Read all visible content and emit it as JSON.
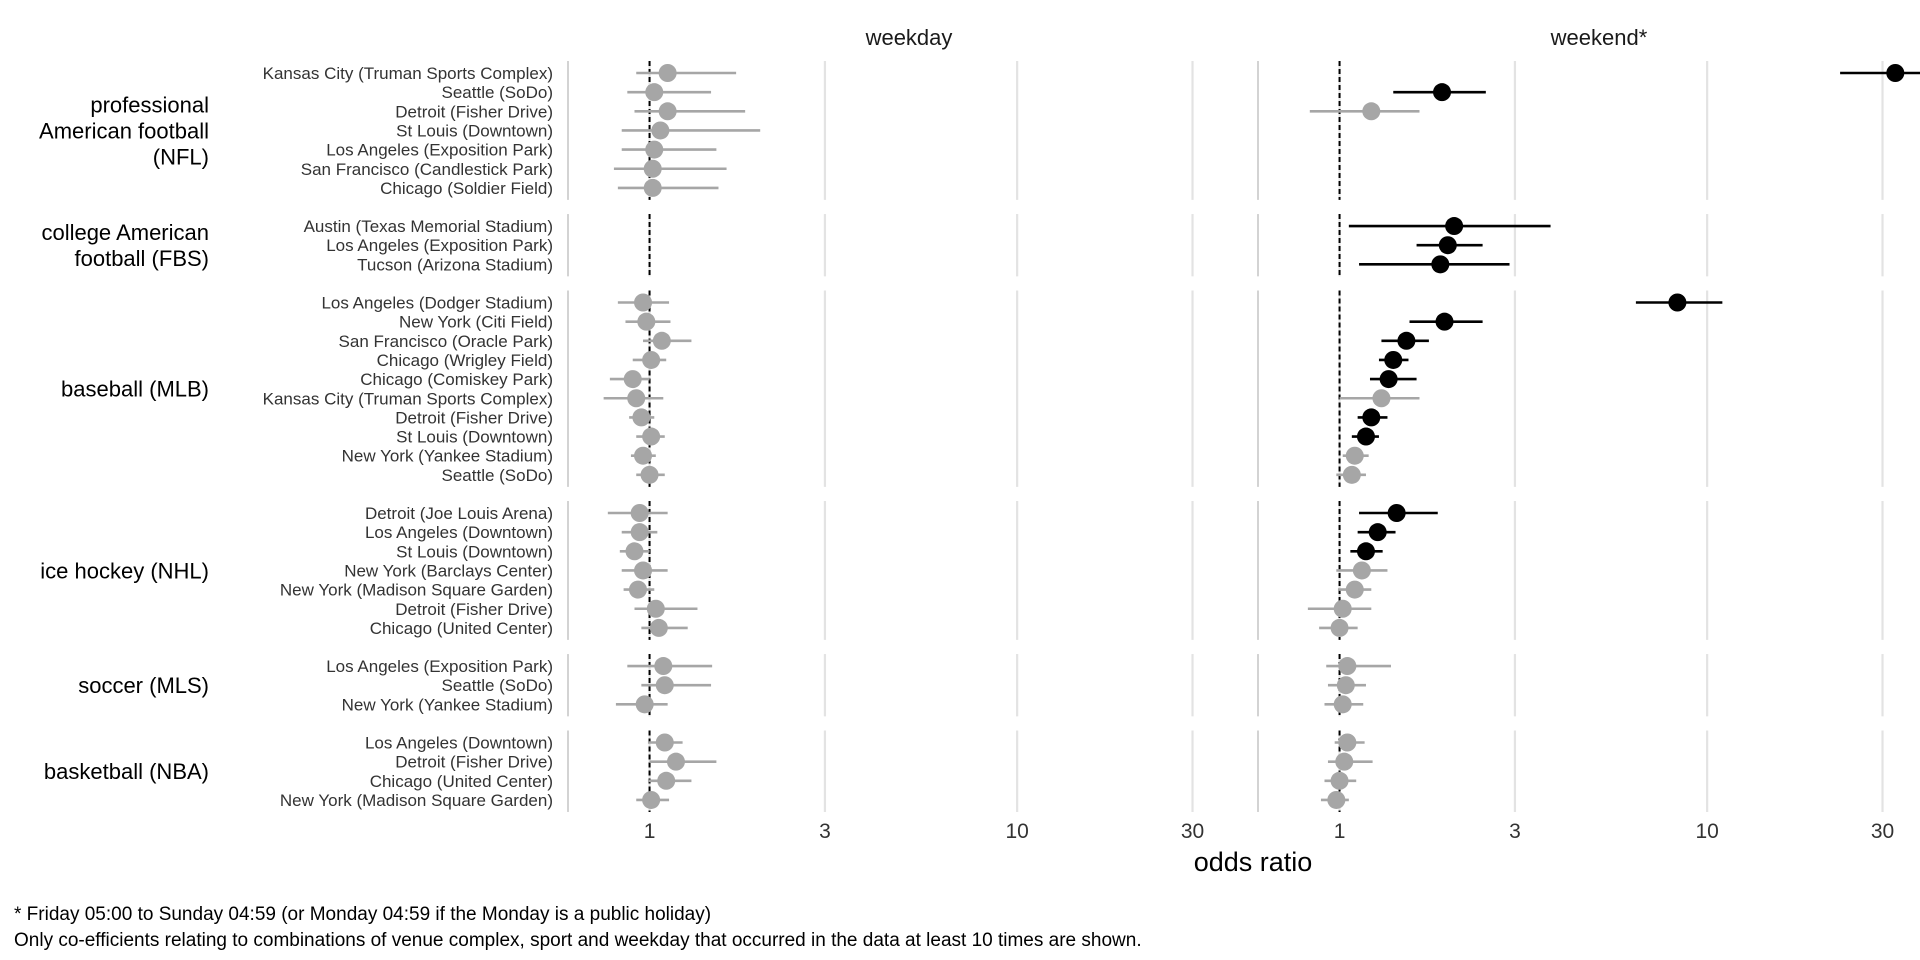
{
  "chart_data": {
    "type": "scatter",
    "subtype": "forest-plot",
    "x_scale": "log",
    "xlabel": "odds ratio",
    "x_ticks": [
      1,
      3,
      10,
      30
    ],
    "x_tick_labels": [
      "1",
      "3",
      "10",
      "30"
    ],
    "xlim": [
      0.6,
      43
    ],
    "reference_line": 1,
    "grid": true,
    "panels": [
      {
        "key": "weekday",
        "title": "weekday"
      },
      {
        "key": "weekend",
        "title": "weekend*"
      }
    ],
    "colors": {
      "significant": "#000000",
      "not_significant": "#a6a6a6",
      "grid": "#e3e3e3"
    },
    "groups": [
      {
        "label_lines": [
          "professional",
          "American football",
          "(NFL)"
        ],
        "rows": [
          {
            "label": "Kansas City (Truman Sports Complex)",
            "weekday": {
              "or": 1.12,
              "lo": 0.92,
              "hi": 1.72,
              "sig": false
            },
            "weekend": {
              "or": 32.5,
              "lo": 23.0,
              "hi": 45.0,
              "sig": true
            }
          },
          {
            "label": "Seattle (SoDo)",
            "weekday": {
              "or": 1.03,
              "lo": 0.87,
              "hi": 1.47,
              "sig": false
            },
            "weekend": {
              "or": 1.9,
              "lo": 1.4,
              "hi": 2.5,
              "sig": true
            }
          },
          {
            "label": "Detroit (Fisher Drive)",
            "weekday": {
              "or": 1.12,
              "lo": 0.91,
              "hi": 1.82,
              "sig": false
            },
            "weekend": {
              "or": 1.22,
              "lo": 0.83,
              "hi": 1.65,
              "sig": false
            }
          },
          {
            "label": "St Louis (Downtown)",
            "weekday": {
              "or": 1.07,
              "lo": 0.84,
              "hi": 2.0,
              "sig": false
            },
            "weekend": null
          },
          {
            "label": "Los Angeles (Exposition Park)",
            "weekday": {
              "or": 1.03,
              "lo": 0.84,
              "hi": 1.52,
              "sig": false
            },
            "weekend": null
          },
          {
            "label": "San Francisco (Candlestick Park)",
            "weekday": {
              "or": 1.02,
              "lo": 0.8,
              "hi": 1.62,
              "sig": false
            },
            "weekend": null
          },
          {
            "label": "Chicago (Soldier Field)",
            "weekday": {
              "or": 1.02,
              "lo": 0.82,
              "hi": 1.54,
              "sig": false
            },
            "weekend": null
          }
        ]
      },
      {
        "label_lines": [
          "college American",
          "football (FBS)"
        ],
        "rows": [
          {
            "label": "Austin (Texas Memorial Stadium)",
            "weekday": null,
            "weekend": {
              "or": 2.05,
              "lo": 1.06,
              "hi": 3.75,
              "sig": true
            }
          },
          {
            "label": "Los Angeles (Exposition Park)",
            "weekday": null,
            "weekend": {
              "or": 1.97,
              "lo": 1.62,
              "hi": 2.45,
              "sig": true
            }
          },
          {
            "label": "Tucson (Arizona Stadium)",
            "weekday": null,
            "weekend": {
              "or": 1.88,
              "lo": 1.13,
              "hi": 2.9,
              "sig": true
            }
          }
        ]
      },
      {
        "label_lines": [
          "baseball (MLB)"
        ],
        "rows": [
          {
            "label": "Los Angeles (Dodger Stadium)",
            "weekday": {
              "or": 0.96,
              "lo": 0.82,
              "hi": 1.13,
              "sig": false
            },
            "weekend": {
              "or": 8.3,
              "lo": 6.4,
              "hi": 11.0,
              "sig": true
            }
          },
          {
            "label": "New York (Citi Field)",
            "weekday": {
              "or": 0.98,
              "lo": 0.86,
              "hi": 1.14,
              "sig": false
            },
            "weekend": {
              "or": 1.93,
              "lo": 1.55,
              "hi": 2.45,
              "sig": true
            }
          },
          {
            "label": "San Francisco (Oracle Park)",
            "weekday": {
              "or": 1.08,
              "lo": 0.96,
              "hi": 1.3,
              "sig": false
            },
            "weekend": {
              "or": 1.52,
              "lo": 1.3,
              "hi": 1.75,
              "sig": true
            }
          },
          {
            "label": "Chicago (Wrigley Field)",
            "weekday": {
              "or": 1.01,
              "lo": 0.9,
              "hi": 1.11,
              "sig": false
            },
            "weekend": {
              "or": 1.4,
              "lo": 1.28,
              "hi": 1.54,
              "sig": true
            }
          },
          {
            "label": "Chicago (Comiskey Park)",
            "weekday": {
              "or": 0.9,
              "lo": 0.78,
              "hi": 1.0,
              "sig": false
            },
            "weekend": {
              "or": 1.36,
              "lo": 1.21,
              "hi": 1.62,
              "sig": true
            }
          },
          {
            "label": "Kansas City (Truman Sports Complex)",
            "weekday": {
              "or": 0.92,
              "lo": 0.75,
              "hi": 1.09,
              "sig": false
            },
            "weekend": {
              "or": 1.3,
              "lo": 1.0,
              "hi": 1.65,
              "sig": false
            }
          },
          {
            "label": "Detroit (Fisher Drive)",
            "weekday": {
              "or": 0.95,
              "lo": 0.88,
              "hi": 1.03,
              "sig": false
            },
            "weekend": {
              "or": 1.22,
              "lo": 1.12,
              "hi": 1.35,
              "sig": true
            }
          },
          {
            "label": "St Louis (Downtown)",
            "weekday": {
              "or": 1.01,
              "lo": 0.92,
              "hi": 1.1,
              "sig": false
            },
            "weekend": {
              "or": 1.18,
              "lo": 1.08,
              "hi": 1.28,
              "sig": true
            }
          },
          {
            "label": "New York (Yankee Stadium)",
            "weekday": {
              "or": 0.96,
              "lo": 0.89,
              "hi": 1.04,
              "sig": false
            },
            "weekend": {
              "or": 1.1,
              "lo": 1.02,
              "hi": 1.2,
              "sig": false
            }
          },
          {
            "label": "Seattle (SoDo)",
            "weekday": {
              "or": 1.0,
              "lo": 0.92,
              "hi": 1.1,
              "sig": false
            },
            "weekend": {
              "or": 1.08,
              "lo": 0.98,
              "hi": 1.18,
              "sig": false
            }
          }
        ]
      },
      {
        "label_lines": [
          "ice hockey (NHL)"
        ],
        "rows": [
          {
            "label": "Detroit (Joe Louis Arena)",
            "weekday": {
              "or": 0.94,
              "lo": 0.77,
              "hi": 1.12,
              "sig": false
            },
            "weekend": {
              "or": 1.43,
              "lo": 1.13,
              "hi": 1.85,
              "sig": true
            }
          },
          {
            "label": "Los Angeles (Downtown)",
            "weekday": {
              "or": 0.94,
              "lo": 0.84,
              "hi": 1.05,
              "sig": false
            },
            "weekend": {
              "or": 1.27,
              "lo": 1.12,
              "hi": 1.42,
              "sig": true
            }
          },
          {
            "label": "St Louis (Downtown)",
            "weekday": {
              "or": 0.91,
              "lo": 0.83,
              "hi": 1.0,
              "sig": false
            },
            "weekend": {
              "or": 1.18,
              "lo": 1.07,
              "hi": 1.31,
              "sig": true
            }
          },
          {
            "label": "New York (Barclays Center)",
            "weekday": {
              "or": 0.96,
              "lo": 0.84,
              "hi": 1.12,
              "sig": false
            },
            "weekend": {
              "or": 1.15,
              "lo": 0.98,
              "hi": 1.35,
              "sig": false
            }
          },
          {
            "label": "New York (Madison Square Garden)",
            "weekday": {
              "or": 0.93,
              "lo": 0.85,
              "hi": 1.03,
              "sig": false
            },
            "weekend": {
              "or": 1.1,
              "lo": 0.99,
              "hi": 1.22,
              "sig": false
            }
          },
          {
            "label": "Detroit (Fisher Drive)",
            "weekday": {
              "or": 1.04,
              "lo": 0.91,
              "hi": 1.35,
              "sig": false
            },
            "weekend": {
              "or": 1.02,
              "lo": 0.82,
              "hi": 1.22,
              "sig": false
            }
          },
          {
            "label": "Chicago (United Center)",
            "weekday": {
              "or": 1.06,
              "lo": 0.95,
              "hi": 1.27,
              "sig": false
            },
            "weekend": {
              "or": 1.0,
              "lo": 0.88,
              "hi": 1.12,
              "sig": false
            }
          }
        ]
      },
      {
        "label_lines": [
          "soccer (MLS)"
        ],
        "rows": [
          {
            "label": "Los Angeles (Exposition Park)",
            "weekday": {
              "or": 1.09,
              "lo": 0.87,
              "hi": 1.48,
              "sig": false
            },
            "weekend": {
              "or": 1.05,
              "lo": 0.92,
              "hi": 1.38,
              "sig": false
            }
          },
          {
            "label": "Seattle (SoDo)",
            "weekday": {
              "or": 1.1,
              "lo": 0.95,
              "hi": 1.47,
              "sig": false
            },
            "weekend": {
              "or": 1.04,
              "lo": 0.93,
              "hi": 1.18,
              "sig": false
            }
          },
          {
            "label": "New York (Yankee Stadium)",
            "weekday": {
              "or": 0.97,
              "lo": 0.81,
              "hi": 1.12,
              "sig": false
            },
            "weekend": {
              "or": 1.02,
              "lo": 0.91,
              "hi": 1.16,
              "sig": false
            }
          }
        ]
      },
      {
        "label_lines": [
          "basketball (NBA)"
        ],
        "rows": [
          {
            "label": "Los Angeles (Downtown)",
            "weekday": {
              "or": 1.1,
              "lo": 0.99,
              "hi": 1.23,
              "sig": false
            },
            "weekend": {
              "or": 1.05,
              "lo": 0.97,
              "hi": 1.17,
              "sig": false
            }
          },
          {
            "label": "Detroit (Fisher Drive)",
            "weekday": {
              "or": 1.18,
              "lo": 1.0,
              "hi": 1.52,
              "sig": false
            },
            "weekend": {
              "or": 1.03,
              "lo": 0.93,
              "hi": 1.23,
              "sig": false
            }
          },
          {
            "label": "Chicago (United Center)",
            "weekday": {
              "or": 1.11,
              "lo": 0.99,
              "hi": 1.3,
              "sig": false
            },
            "weekend": {
              "or": 1.0,
              "lo": 0.91,
              "hi": 1.11,
              "sig": false
            }
          },
          {
            "label": "New York (Madison Square Garden)",
            "weekday": {
              "or": 1.01,
              "lo": 0.92,
              "hi": 1.13,
              "sig": false
            },
            "weekend": {
              "or": 0.98,
              "lo": 0.89,
              "hi": 1.06,
              "sig": false
            }
          }
        ]
      }
    ]
  },
  "footnotes": {
    "line1": "* Friday 05:00 to Sunday 04:59 (or Monday 04:59 if the Monday is a public holiday)",
    "line2": "Only co-efficients relating to combinations of venue complex, sport and weekday that occurred in the data at least 10 times are shown."
  }
}
